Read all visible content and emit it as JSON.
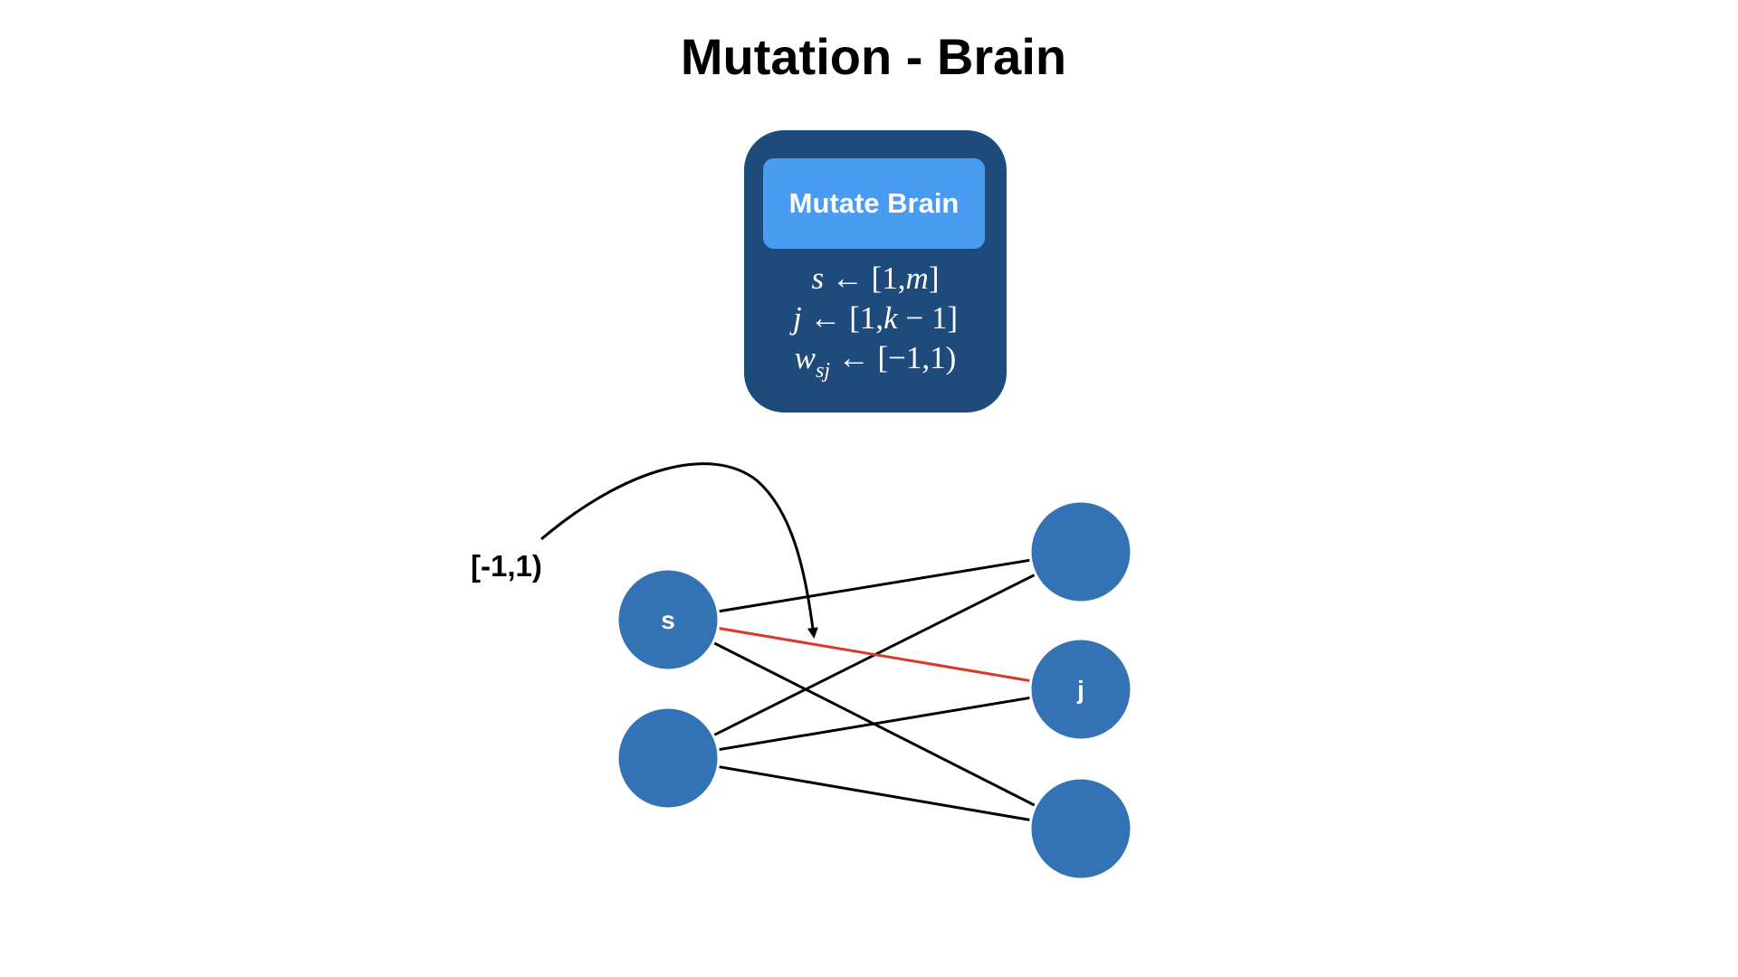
{
  "title": "Mutation - Brain",
  "module": {
    "header": "Mutate Brain",
    "lines": [
      {
        "var": "s",
        "sub": "",
        "rest": " ← [1,",
        "var2": "m",
        "tail": "]"
      },
      {
        "var": "j",
        "sub": "",
        "rest": " ← [1,",
        "var2": "k",
        "tail": " − 1]"
      },
      {
        "var": "w",
        "sub": "sj",
        "rest": " ← [−1,1)",
        "var2": "",
        "tail": ""
      }
    ]
  },
  "network": {
    "range_label": "[-1,1)",
    "left_nodes": [
      {
        "label": "s"
      },
      {
        "label": ""
      }
    ],
    "right_nodes": [
      {
        "label": ""
      },
      {
        "label": "j"
      },
      {
        "label": ""
      }
    ],
    "highlighted_edge": {
      "from": "s",
      "to": "j"
    }
  },
  "colors": {
    "node": "#3373b5",
    "edge": "#000000",
    "highlight_edge": "#d63a2a",
    "card": "#1f4a7c",
    "card_header": "#4a9cf2"
  }
}
